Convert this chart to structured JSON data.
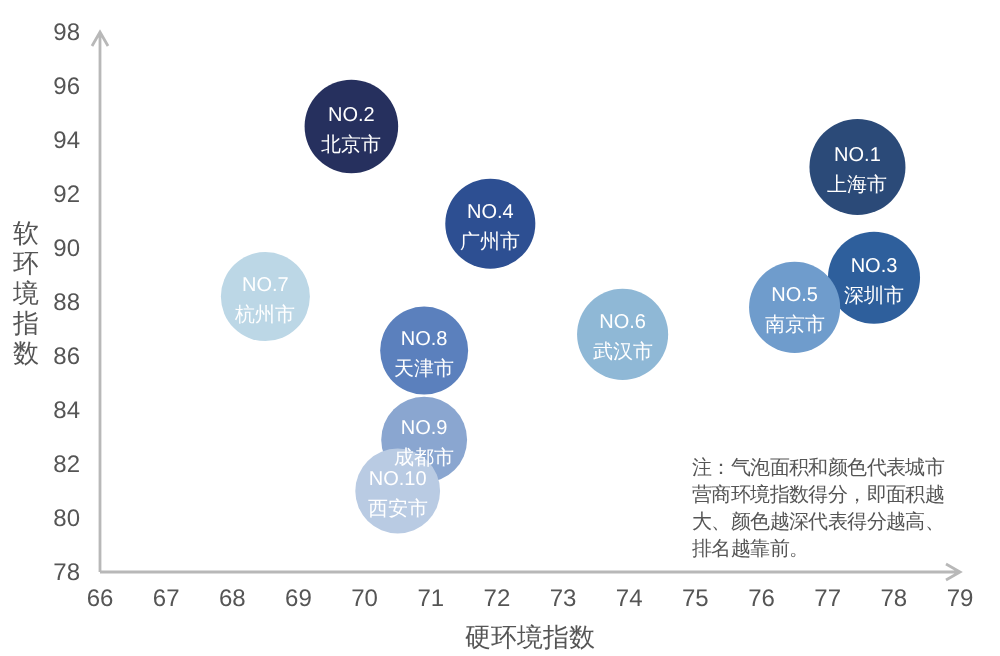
{
  "chart_data": {
    "type": "bubble",
    "xlabel": "硬环境指数",
    "ylabel": "软环境指数",
    "xlim": [
      66,
      79
    ],
    "xticks": [
      66,
      67,
      68,
      69,
      70,
      71,
      72,
      73,
      74,
      75,
      76,
      77,
      78,
      79
    ],
    "ylim": [
      78,
      98
    ],
    "yticks": [
      78,
      80,
      82,
      84,
      86,
      88,
      90,
      92,
      94,
      96,
      98
    ],
    "grid": false,
    "x": [
      77.45,
      69.8,
      77.7,
      71.9,
      76.5,
      73.9,
      68.5,
      70.9,
      70.9,
      70.5
    ],
    "values": [
      93.0,
      94.5,
      88.9,
      90.9,
      87.8,
      86.8,
      88.2,
      86.2,
      82.9,
      81.0
    ],
    "sizes": [
      1.0,
      0.95,
      0.92,
      0.88,
      0.9,
      0.9,
      0.86,
      0.84,
      0.8,
      0.78
    ],
    "colors": [
      "#2b4a78",
      "#26305e",
      "#2e5f9c",
      "#2d4f92",
      "#6f9ccc",
      "#8fb8d6",
      "#bcd7e6",
      "#5b80bd",
      "#8aa6d0",
      "#b9cbe3"
    ],
    "annotations": [
      {
        "text": "NO.1\n上海市",
        "x": 77.45,
        "y": 93.0
      },
      {
        "text": "NO.2\n北京市",
        "x": 69.8,
        "y": 94.5
      },
      {
        "text": "NO.3\n深圳市",
        "x": 77.7,
        "y": 88.9
      },
      {
        "text": "NO.4\n广州市",
        "x": 71.9,
        "y": 90.9
      },
      {
        "text": "NO.5\n南京市",
        "x": 76.5,
        "y": 87.8
      },
      {
        "text": "NO.6\n武汉市",
        "x": 73.9,
        "y": 86.8
      },
      {
        "text": "NO.7\n杭州市",
        "x": 68.5,
        "y": 88.2
      },
      {
        "text": "NO.8\n天津市",
        "x": 70.9,
        "y": 86.2
      },
      {
        "text": "NO.9\n成都市",
        "x": 70.9,
        "y": 82.9
      },
      {
        "text": "NO.10\n西安市",
        "x": 70.5,
        "y": 81.0
      },
      "注：气泡面积和颜色代表城市营商环境指数得分，即面积越大、颜色越深代表得分越高、排名越靠前。"
    ]
  }
}
